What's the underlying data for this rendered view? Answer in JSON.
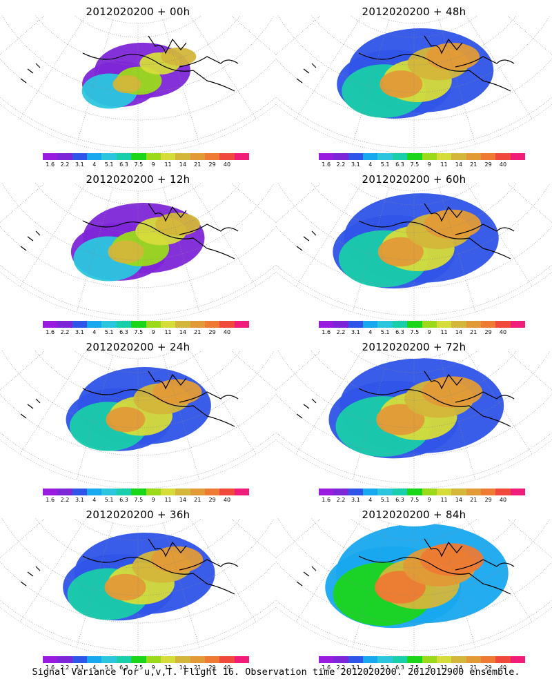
{
  "footer_caption": "Signal Variance for u,v,T. Flight 16. Observation time 2012020200. 2012012900 ensemble.",
  "colorbar": {
    "colors": [
      "#9a1be0",
      "#7d26d8",
      "#2f54e8",
      "#17a8ef",
      "#2bc6de",
      "#19ceaa",
      "#1bd51b",
      "#9bda1a",
      "#d6dc3a",
      "#d3b63a",
      "#e29a37",
      "#ee7a33",
      "#f0483a",
      "#f01c7a"
    ],
    "labels": [
      "1.6",
      "2.2",
      "3.1",
      "4",
      "5.1",
      "6.3",
      "7.5",
      "9",
      "11",
      "14",
      "21",
      "29",
      "40"
    ]
  },
  "panels": [
    {
      "title": "2012020200 + 00h",
      "intensity": 0.2
    },
    {
      "title": "2012020200 + 48h",
      "intensity": 0.62
    },
    {
      "title": "2012020200 + 12h",
      "intensity": 0.42
    },
    {
      "title": "2012020200 + 60h",
      "intensity": 0.7
    },
    {
      "title": "2012020200 + 24h",
      "intensity": 0.52
    },
    {
      "title": "2012020200 + 72h",
      "intensity": 0.78
    },
    {
      "title": "2012020200 + 36h",
      "intensity": 0.58
    },
    {
      "title": "2012020200 + 84h",
      "intensity": 0.85
    }
  ]
}
